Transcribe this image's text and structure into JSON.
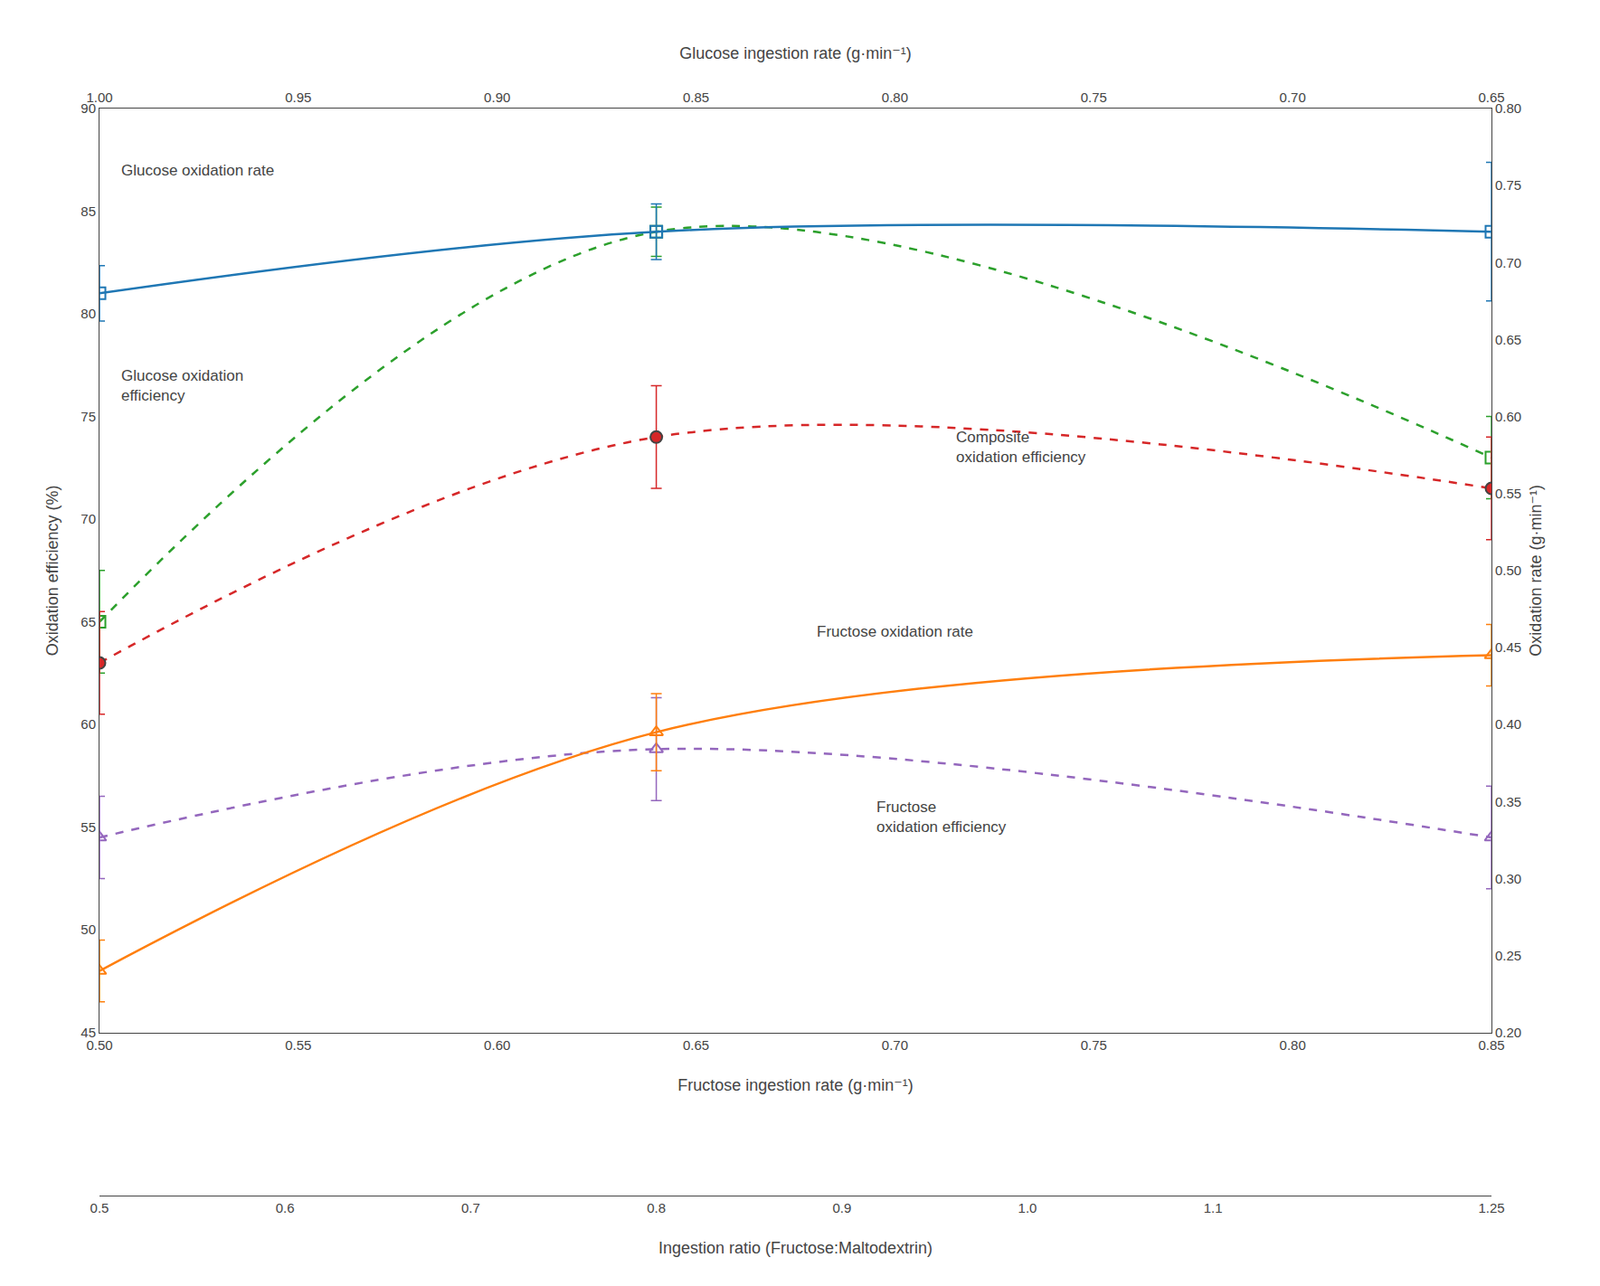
{
  "chart_data": {
    "type": "line",
    "grid": false,
    "x": [
      0.5,
      0.64,
      0.85
    ],
    "xlim": [
      0.5,
      0.85
    ],
    "xticks": [
      {
        "value": 0.5,
        "label": "0.50"
      },
      0.55,
      {
        "value": 0.6,
        "label": "0.60"
      },
      0.65,
      {
        "value": 0.7,
        "label": "0.70"
      },
      0.75,
      {
        "value": 0.8,
        "label": "0.80"
      },
      0.85
    ],
    "xlabel": "Fructose ingestion rate (g·min⁻¹)",
    "x_top": {
      "xlabel": "Glucose ingestion rate (g·min⁻¹)",
      "xticks": [
        {
          "value": 0.5,
          "label": "1.00"
        },
        {
          "value": 0.55,
          "label": "0.95"
        },
        {
          "value": 0.6,
          "label": "0.90"
        },
        {
          "value": 0.65,
          "label": "0.85"
        },
        {
          "value": 0.7,
          "label": "0.80"
        },
        {
          "value": 0.75,
          "label": "0.75"
        },
        {
          "value": 0.8,
          "label": "0.70"
        },
        {
          "value": 0.85,
          "label": "0.65"
        }
      ]
    },
    "x_ratio": {
      "xlabel": "Ingestion ratio (Fructose:Maltodextrin)",
      "xticks": [
        0.5,
        {
          "value": 0.5466666666666666,
          "label": "0.6"
        },
        {
          "value": 0.5933333333333333,
          "label": "0.7"
        },
        {
          "value": 0.64,
          "label": "0.8"
        },
        {
          "value": 0.6866666666666666,
          "label": "0.9"
        },
        {
          "value": 0.7333333333333333,
          "label": "1.0"
        },
        {
          "value": 0.78,
          "label": "1.1"
        },
        {
          "value": 0.85,
          "label": "1.25"
        }
      ]
    },
    "ylabel": "Oxidation efficiency (%)",
    "ylim": [
      45,
      90
    ],
    "yticks": [
      45,
      50,
      55,
      60,
      65,
      70,
      75,
      80,
      85,
      90
    ],
    "y2label": "Oxidation rate (g·min⁻¹)",
    "y2lim": [
      0.2,
      0.8
    ],
    "y2ticks": [
      {
        "value": 0.2,
        "label": "0.20"
      },
      0.25,
      {
        "value": 0.3,
        "label": "0.30"
      },
      0.35,
      {
        "value": 0.4,
        "label": "0.40"
      },
      0.45,
      {
        "value": 0.5,
        "label": "0.50"
      },
      0.55,
      {
        "value": 0.6,
        "label": "0.60"
      },
      0.65,
      {
        "value": 0.7,
        "label": "0.70"
      },
      0.75,
      {
        "value": 0.8,
        "label": "0.80"
      }
    ],
    "series": [
      {
        "axis": "y2",
        "marker": "square-open",
        "line_style": "solid",
        "values": [
          0.68,
          0.72,
          0.72
        ],
        "errors": [
          0.018,
          0.018,
          0.045
        ]
      },
      {
        "axis": "y2",
        "marker": "triangle-up-open",
        "line_style": "solid",
        "values": [
          0.24,
          0.395,
          0.445
        ],
        "errors": [
          0.02,
          0.025,
          0.02
        ]
      },
      {
        "axis": "y",
        "marker": "square-open",
        "line_style": "dash",
        "values": [
          65.0,
          84.0,
          73.0
        ],
        "errors": [
          2.5,
          1.2,
          2.0
        ]
      },
      {
        "axis": "y",
        "marker": "circle",
        "line_style": "dash",
        "values": [
          63.0,
          74.0,
          71.5
        ],
        "errors": [
          2.5,
          2.5,
          2.5
        ]
      },
      {
        "axis": "y",
        "marker": "triangle-up-open",
        "line_style": "dash",
        "values": [
          54.5,
          58.8,
          54.5
        ],
        "errors": [
          2.0,
          2.5,
          2.5
        ]
      }
    ],
    "annotations": [
      {
        "text": "Glucose oxidation rate",
        "x": 0.505,
        "y": 87.0
      },
      {
        "text": "Glucose oxidation\nefficiency",
        "x": 0.505,
        "y": 76.5
      },
      {
        "text": "Composite\noxidation efficiency",
        "x": 0.715,
        "y": 73.5
      },
      {
        "text": "Fructose oxidation rate",
        "x": 0.68,
        "y": 64.5
      },
      {
        "text": "Fructose\noxidation efficiency",
        "x": 0.695,
        "y": 55.5
      }
    ]
  }
}
